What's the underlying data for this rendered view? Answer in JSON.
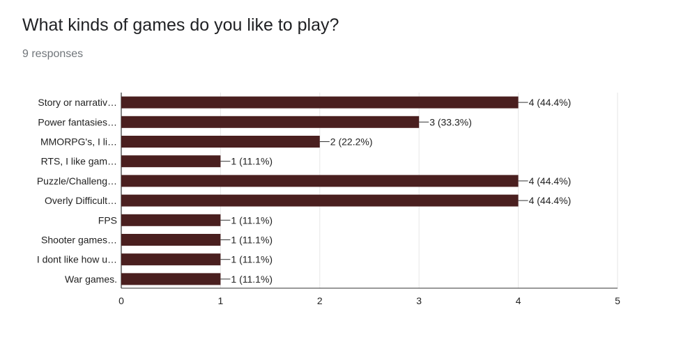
{
  "header": {
    "title": "What kinds of games do you like to play?",
    "responses": "9 responses"
  },
  "colors": {
    "bar": "#4a1f1f",
    "grid": "#e6e6e6",
    "axis": "#333333",
    "text": "#222222"
  },
  "chart_data": {
    "type": "bar",
    "orientation": "horizontal",
    "categories": [
      "Story or narrativ…",
      "Power fantasies…",
      "MMORPG's, I li…",
      "RTS, I like gam…",
      "Puzzle/Challeng…",
      "Overly Difficult…",
      "FPS",
      "Shooter games…",
      "I dont like how u…",
      "War games."
    ],
    "values": [
      4,
      3,
      2,
      1,
      4,
      4,
      1,
      1,
      1,
      1
    ],
    "value_labels": [
      "4 (44.4%)",
      "3 (33.3%)",
      "2 (22.2%)",
      "1 (11.1%)",
      "4 (44.4%)",
      "4 (44.4%)",
      "1 (11.1%)",
      "1 (11.1%)",
      "1 (11.1%)",
      "1 (11.1%)"
    ],
    "xticks": [
      "0",
      "1",
      "2",
      "3",
      "4",
      "5"
    ],
    "xlim": [
      0,
      5
    ],
    "grid": true
  }
}
